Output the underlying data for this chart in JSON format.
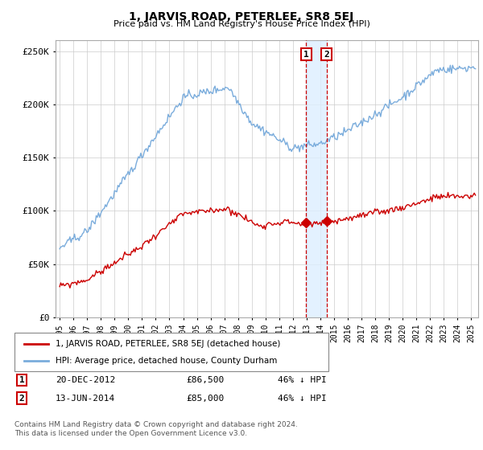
{
  "title": "1, JARVIS ROAD, PETERLEE, SR8 5EJ",
  "subtitle": "Price paid vs. HM Land Registry's House Price Index (HPI)",
  "legend_line1": "1, JARVIS ROAD, PETERLEE, SR8 5EJ (detached house)",
  "legend_line2": "HPI: Average price, detached house, County Durham",
  "transactions": [
    {
      "label": "1",
      "date_str": "20-DEC-2012",
      "date_num": 2012.97,
      "price": 86500,
      "price_str": "£86,500",
      "pct": "46% ↓ HPI"
    },
    {
      "label": "2",
      "date_str": "13-JUN-2014",
      "date_num": 2014.45,
      "price": 85000,
      "price_str": "£85,000",
      "pct": "46% ↓ HPI"
    }
  ],
  "footer1": "Contains HM Land Registry data © Crown copyright and database right 2024.",
  "footer2": "This data is licensed under the Open Government Licence v3.0.",
  "red_color": "#cc0000",
  "blue_color": "#7aacdc",
  "shade_color": "#ddeeff",
  "background_color": "#ffffff",
  "ylim": [
    0,
    260000
  ],
  "xlim_start": 1994.7,
  "xlim_end": 2025.5,
  "hpi_seed": 42,
  "prop_seed": 99
}
